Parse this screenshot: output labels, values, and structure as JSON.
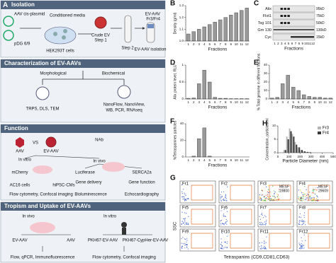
{
  "figure": {
    "panel_a": "A",
    "sections": [
      {
        "title": "Isolation",
        "texts": [
          "AAV cis-plasmid",
          "pDG 6/9",
          "Conditioned media",
          "HEK293T cells",
          "Crude EV",
          "Step 1",
          "Step 2",
          "EV-AAV",
          "Fr3/Fr4",
          "EV-AAV isolation"
        ]
      },
      {
        "title": "Characterization of EV-AAVs",
        "texts": [
          "Morphological",
          "Biochemical",
          "TRPS, DLS, TEM",
          "NanoFlow, NanoView,",
          "WB, PCR, RNAseq"
        ]
      },
      {
        "title": "Function",
        "texts": [
          "AAV",
          "VS",
          "EV-AAV",
          "NAb",
          "In vitro",
          "In vivo",
          "mCherry",
          "Luciferase",
          "SERCA2a",
          "AC16 cells",
          "hiPSC-CMs",
          "Gene delivery",
          "Gene function",
          "Flow cytometry, Confocal imaging",
          "Bioluminescence",
          "Echocardiography"
        ]
      },
      {
        "title": "Tropism and Uptake of EV-AAVs",
        "texts": [
          "In vivo",
          "In vitro",
          "EV-AAV",
          "AAV",
          "PKH67-EV-AAV",
          "PKH67-CypHer-EV-AAV",
          "Flow, qPCR, Immunofluorescence",
          "Flow cytometry, Confocal imaging"
        ]
      }
    ]
  },
  "chart_data": [
    {
      "panel": "B",
      "type": "bar",
      "y_label": "Density (g/ml)",
      "x_label": "Fractions",
      "categories": [
        "1",
        "2",
        "3",
        "4",
        "5",
        "6",
        "7",
        "8",
        "9",
        "10",
        "11",
        "12"
      ],
      "values": [
        1.06,
        1.08,
        1.1,
        1.12,
        1.14,
        1.16,
        1.18,
        1.2,
        1.22,
        1.24,
        1.26,
        1.28
      ],
      "ylim": [
        1.0,
        1.3
      ],
      "yticks": [
        {
          "value": 1.0,
          "label": "1.0"
        },
        1.1,
        1.2,
        1.3
      ],
      "color": "#9a9a9a"
    },
    {
      "panel": "D",
      "type": "bar",
      "y_label": "Alix protein level, RLU",
      "x_label": "Fractions",
      "categories": [
        "1",
        "2",
        "3",
        "4",
        "5",
        "6",
        "7",
        "8",
        "9",
        "10",
        "11",
        "12"
      ],
      "values": [
        0.02,
        0.03,
        0.45,
        0.85,
        0.5,
        0.05,
        0.02,
        0.02,
        0.01,
        0.01,
        0.01,
        0.01
      ],
      "ylim": [
        0,
        1
      ],
      "yticks": [
        0,
        0.5,
        1
      ],
      "color": "#9a9a9a"
    },
    {
      "panel": "E",
      "type": "bar",
      "y_label": "% Total genome in different fractions",
      "x_label": "Fractions",
      "categories": [
        "1",
        "2",
        "3",
        "4",
        "5",
        "6",
        "7",
        "8",
        "9",
        "10",
        "11",
        "12"
      ],
      "values": [
        1,
        2,
        18,
        28,
        14,
        10,
        5,
        3,
        2,
        2,
        1,
        1
      ],
      "ylim": [
        0,
        40
      ],
      "yticks": [
        0,
        10,
        20,
        30,
        40
      ],
      "color": "#9a9a9a"
    },
    {
      "panel": "F",
      "type": "bar",
      "y_label": "%Tetraspanines particles",
      "x_label": "Fractions",
      "categories": [
        "1",
        "2",
        "3",
        "4",
        "5",
        "6",
        "7",
        "8",
        "9",
        "10",
        "11",
        "12"
      ],
      "values": [
        0,
        1,
        22,
        35,
        1,
        0,
        0,
        0,
        0,
        0,
        0,
        0
      ],
      "ylim": [
        0,
        40
      ],
      "yticks": [
        0,
        20,
        40
      ],
      "color": "#9a9a9a"
    },
    {
      "panel": "H",
      "type": "histogram",
      "y_label": "Concentration, particles/ml",
      "x_label": "Particle Diameter (nm)",
      "bins": [
        50,
        75,
        100,
        125,
        150,
        175,
        200,
        225,
        250,
        275,
        300
      ],
      "series": [
        {
          "name": "Fr3",
          "color": "#b5b5b5",
          "values": [
            1,
            6,
            9,
            7,
            4,
            2,
            1,
            0.5,
            0.3,
            0.2
          ]
        },
        {
          "name": "Fr4",
          "color": "#3a3a3a",
          "values": [
            1,
            5,
            8,
            6,
            3,
            2,
            1,
            0.5,
            0.3,
            0.2
          ]
        }
      ],
      "xlim": [
        0,
        500
      ],
      "xticks": [
        0,
        100,
        200,
        300,
        400,
        500
      ],
      "ylim": [
        0,
        10
      ],
      "yticks": [
        0,
        5,
        10
      ]
    }
  ],
  "blot": {
    "panel": "C",
    "rows": [
      "Alix",
      "Flot1",
      "Tsg 101",
      "Gm 130",
      "Cyc"
    ],
    "markers": [
      "95kD",
      "75kD",
      "50kD",
      "130kD",
      "15kD"
    ],
    "lanes": [
      "1",
      "2",
      "3",
      "4",
      "5",
      "6",
      "7",
      "8",
      "9",
      "10",
      "11",
      "12"
    ],
    "x_label": "Fractions"
  },
  "flow": {
    "panel": "G",
    "y_label": "SSC",
    "x_label": "Tetraspanins (CD9,CD81,CD63)",
    "plots": [
      {
        "title": "Fr1"
      },
      {
        "title": "Fr2"
      },
      {
        "title": "Fr3",
        "note": [
          "MESF",
          "19800"
        ]
      },
      {
        "title": "Fr4",
        "note": [
          "MESF",
          "29609"
        ]
      },
      {
        "title": "Fr5"
      },
      {
        "title": "Fr6"
      },
      {
        "title": "Fr7"
      },
      {
        "title": "Fr8"
      },
      {
        "title": "Fr9"
      },
      {
        "title": "Fr10"
      },
      {
        "title": "Fr11"
      },
      {
        "title": "Fr12"
      }
    ]
  }
}
